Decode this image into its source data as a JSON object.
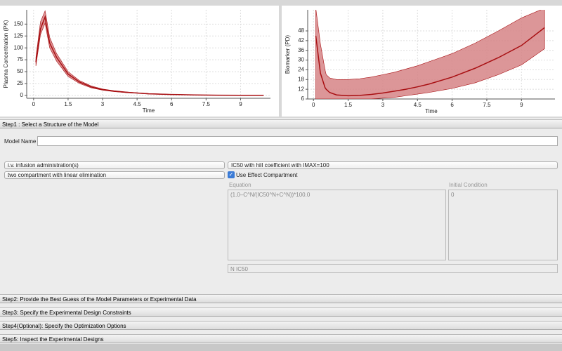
{
  "chart_data": [
    {
      "type": "line",
      "xlabel": "Time",
      "ylabel": "Plasma Concentration (PK)",
      "x": [
        0.1,
        0.3,
        0.5,
        0.55,
        0.7,
        1,
        1.5,
        2,
        2.5,
        3,
        3.5,
        4,
        4.5,
        5,
        6,
        7,
        8,
        9,
        10
      ],
      "values": [
        70,
        140,
        165,
        150,
        110,
        80,
        45,
        28,
        18,
        12,
        9,
        6.5,
        5,
        3.5,
        2,
        1,
        0.5,
        0.3,
        0.2
      ],
      "upper": [
        80,
        155,
        178,
        165,
        122,
        88,
        50,
        31,
        20,
        13.5,
        10,
        7.5,
        5.5,
        4,
        2.3,
        1.2,
        0.7,
        0.4,
        0.3
      ],
      "lower": [
        62,
        128,
        152,
        138,
        100,
        72,
        40,
        25,
        16,
        11,
        8,
        6,
        4.5,
        3,
        1.7,
        0.8,
        0.4,
        0.2,
        0.1
      ],
      "color": "#a80f12",
      "band_color": "#d68486",
      "xlim": [
        -0.3,
        10.3
      ],
      "xticks": [
        0,
        1.5,
        3,
        4.5,
        6,
        7.5,
        9
      ],
      "ylim": [
        -6,
        180
      ],
      "yticks": [
        0,
        25,
        50,
        75,
        100,
        125,
        150
      ],
      "grid": true
    },
    {
      "type": "line",
      "xlabel": "Time",
      "ylabel": "Biomarker (PD)",
      "x": [
        0.1,
        0.3,
        0.5,
        0.55,
        0.7,
        1,
        1.5,
        2,
        2.5,
        3,
        3.5,
        4,
        4.5,
        5,
        6,
        7,
        8,
        9,
        10
      ],
      "values": [
        45,
        22,
        13,
        12,
        10,
        8.5,
        8,
        8.2,
        8.8,
        9.7,
        10.8,
        12,
        13.5,
        15.2,
        19.5,
        25,
        31.5,
        39,
        50
      ],
      "upper": [
        62,
        40,
        24,
        21,
        19,
        18,
        18,
        18.5,
        19.5,
        21,
        22.5,
        24.5,
        26.5,
        29,
        34,
        40.5,
        48,
        56,
        62
      ],
      "lower": [
        6,
        6,
        6,
        6,
        6,
        6,
        6,
        6,
        6,
        6.5,
        7,
        8,
        9,
        10,
        12.5,
        16,
        21,
        27,
        37
      ],
      "color": "#a80f12",
      "band_color": "#d68486",
      "xlim": [
        -0.25,
        10.45
      ],
      "xticks": [
        0,
        1.5,
        3,
        4.5,
        6,
        7.5,
        9
      ],
      "ylim": [
        6,
        61
      ],
      "yticks": [
        6,
        12,
        18,
        24,
        30,
        36,
        42,
        48
      ],
      "grid": true
    }
  ],
  "form": {
    "step1": "Step1 : Select a Structure of the Model",
    "model_name_label": "Model Name",
    "administration": "i.v. infusion administration(s)",
    "compartment": "two compartment with linear elimination",
    "pd_model": "IC50 with hill coefficient with IMAX=100",
    "effect_compartment": "Use Effect Compartment",
    "equation_label": "Equation",
    "initial_condition_label": "Initial Condition",
    "equation": "(1.0–C^N/(IC50^N+C^N))*100.0",
    "initial_condition": "0",
    "parameters": "N IC50",
    "step2": "Step2: Provide the Best Guess of the Model Parameters or Experimental Data",
    "step3": "Step3: Specify the Experimental Design Constraints",
    "step4": "Step4(Optional): Specify the Optimization Options",
    "step5": "Step5: Inspect the Experimental Designs"
  }
}
